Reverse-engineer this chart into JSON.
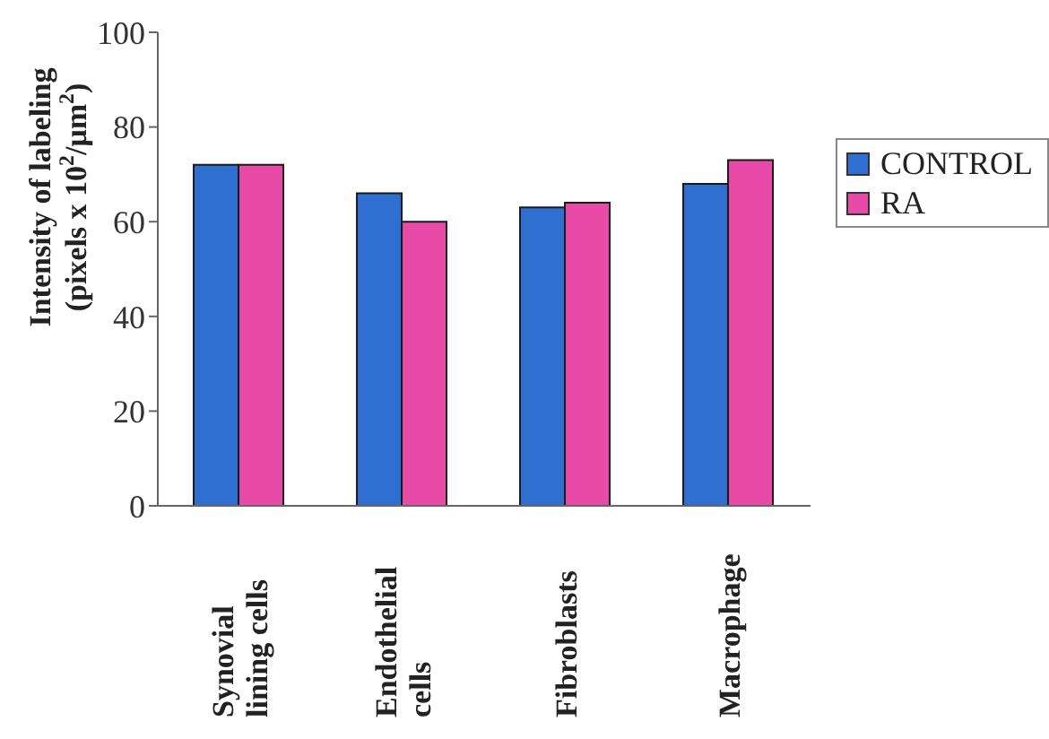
{
  "chart_data": {
    "type": "bar",
    "ylabel": "Intensity of labeling (pixels x 10$^{2}$/μm$^{2}$)",
    "categories": [
      "Synovial lining cells",
      "Endothelial cells",
      "Fibroblasts",
      "Macrophage"
    ],
    "series": [
      {
        "name": "CONTROL",
        "color": "#2e6fd1",
        "values": [
          72,
          66,
          63,
          68
        ]
      },
      {
        "name": "RA",
        "color": "#e84aa8",
        "values": [
          72,
          60,
          64,
          73
        ]
      }
    ],
    "ylim": [
      0,
      100
    ],
    "yticks": [
      0,
      20,
      40,
      60,
      80,
      100
    ],
    "legend": "right"
  }
}
